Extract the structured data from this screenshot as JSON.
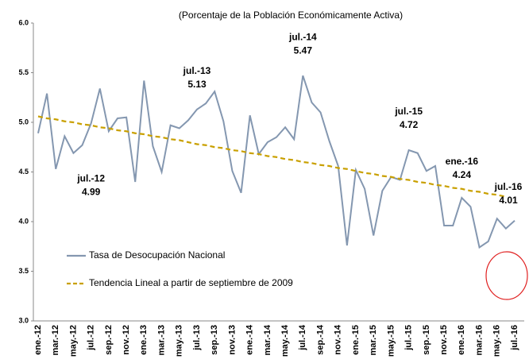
{
  "chart_data": {
    "type": "line",
    "subtitle": "(Porcentaje de la Población Económicamente Activa)",
    "categories": [
      "ene.-12",
      null,
      "mar.-12",
      null,
      "may.-12",
      null,
      "jul.-12",
      null,
      "sep.-12",
      null,
      "nov.-12",
      null,
      "ene.-13",
      null,
      "mar.-13",
      null,
      "may.-13",
      null,
      "jul.-13",
      null,
      "sep.-13",
      null,
      "nov.-13",
      null,
      "ene.-14",
      null,
      "mar.-14",
      null,
      "may.-14",
      null,
      "jul.-14",
      null,
      "sep.-14",
      null,
      "nov.-14",
      null,
      "ene.-15",
      null,
      "mar.-15",
      null,
      "may.-15",
      null,
      "jul.-15",
      null,
      "sep.-15",
      null,
      "nov.-15",
      null,
      "ene.-16",
      null,
      "mar.-16",
      null,
      "may.-16",
      null,
      "jul.-16"
    ],
    "series": [
      {
        "name": "Tasa de Desocupación Nacional",
        "color": "#8497b0",
        "dashed": false,
        "values": [
          4.89,
          5.29,
          4.53,
          4.86,
          4.69,
          4.77,
          4.99,
          5.34,
          4.91,
          5.04,
          5.05,
          4.4,
          5.42,
          4.76,
          4.5,
          4.97,
          4.94,
          5.02,
          5.13,
          5.19,
          5.31,
          5.01,
          4.51,
          4.29,
          5.07,
          4.68,
          4.8,
          4.85,
          4.95,
          4.83,
          5.47,
          5.2,
          5.1,
          4.81,
          4.56,
          3.76,
          4.52,
          4.33,
          3.86,
          4.31,
          4.45,
          4.42,
          4.72,
          4.69,
          4.51,
          4.56,
          3.96,
          3.96,
          4.24,
          4.15,
          3.74,
          3.8,
          4.03,
          3.93,
          4.01
        ]
      },
      {
        "name": "Tendencia Lineal a partir de septiembre de 2009",
        "color": "#c9a000",
        "dashed": true,
        "values": [
          5.06,
          5.04,
          5.03,
          5.01,
          5.0,
          4.98,
          4.97,
          4.95,
          4.94,
          4.92,
          4.91,
          4.89,
          4.88,
          4.86,
          4.85,
          4.83,
          4.82,
          4.8,
          4.78,
          4.77,
          4.75,
          4.74,
          4.72,
          4.71,
          4.69,
          4.68,
          4.66,
          4.65,
          4.63,
          4.62,
          4.6,
          4.59,
          4.57,
          4.56,
          4.54,
          4.53,
          4.51,
          4.49,
          4.48,
          4.46,
          4.45,
          4.43,
          4.42,
          4.4,
          4.39,
          4.37,
          4.36,
          4.34,
          4.33,
          4.31,
          4.3,
          4.28,
          4.27,
          4.25,
          null
        ]
      }
    ],
    "annotations": [
      {
        "text": "jul.-12",
        "value": 4.99
      },
      {
        "text": "jul.-13",
        "value": 5.13
      },
      {
        "text": "jul.-14",
        "value": 5.47
      },
      {
        "text": "jul.-15",
        "value": 4.72
      },
      {
        "text": "ene.-16",
        "value": 4.24
      },
      {
        "text": "jul.-16",
        "value": 4.01
      }
    ],
    "ylim": [
      3,
      6
    ],
    "yticks": [
      {
        "value": 3,
        "label": "3.0"
      },
      {
        "value": 3.5,
        "label": "3.5"
      },
      {
        "value": 4,
        "label": "4.0"
      },
      {
        "value": 4.5,
        "label": "4.5"
      },
      {
        "value": 5,
        "label": "5.0"
      },
      {
        "value": 5.5,
        "label": "5.5"
      },
      {
        "value": 6,
        "label": "6.0"
      }
    ],
    "grid": false
  }
}
